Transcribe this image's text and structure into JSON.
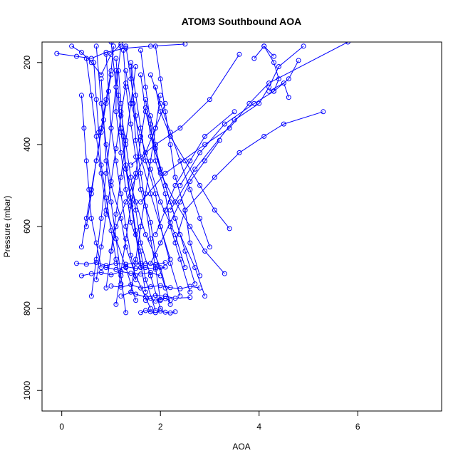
{
  "chart_data": {
    "type": "scatter",
    "title": "ATOM3 Southbound AOA",
    "xlabel": "AOA",
    "ylabel": "Pressure (mbar)",
    "xlim": [
      -0.4,
      7.7
    ],
    "ylim": [
      1050,
      150
    ],
    "x_ticks": [
      0,
      2,
      4,
      6
    ],
    "x_tick_labels": [
      "0",
      "2",
      "4",
      "6"
    ],
    "y_ticks": [
      200,
      400,
      600,
      800,
      1000
    ],
    "y_tick_labels": [
      "200",
      "400",
      "600",
      "800",
      "1000"
    ],
    "series_color": "#0000ff",
    "grid": false,
    "legend": "none",
    "series": [
      {
        "x": [
          1.6,
          1.7,
          1.8,
          1.9,
          2.0,
          2.1,
          2.2,
          2.3
        ],
        "y": [
          810,
          805,
          808,
          810,
          806,
          809,
          811,
          808
        ]
      },
      {
        "x": [
          1.2,
          1.4,
          1.5,
          1.7,
          1.9,
          2.1,
          2.3,
          2.6
        ],
        "y": [
          770,
          760,
          765,
          772,
          768,
          770,
          775,
          773
        ]
      },
      {
        "x": [
          0.4,
          0.6,
          0.8,
          1.0,
          1.2,
          1.4,
          1.6,
          1.8,
          2.0
        ],
        "y": [
          720,
          715,
          712,
          718,
          710,
          714,
          716,
          712,
          720
        ]
      },
      {
        "x": [
          0.3,
          0.5,
          0.7,
          0.9,
          1.1,
          1.3,
          1.5,
          1.7,
          1.9,
          2.1
        ],
        "y": [
          690,
          692,
          688,
          695,
          690,
          692,
          689,
          691,
          693,
          688
        ]
      },
      {
        "x": [
          1.0,
          1.2,
          1.4,
          1.6,
          1.8,
          2.0,
          2.2,
          2.4,
          2.6,
          2.8
        ],
        "y": [
          745,
          748,
          742,
          750,
          747,
          744,
          749,
          752,
          746,
          750
        ]
      },
      {
        "x": [
          1.8,
          1.5,
          1.3,
          1.2,
          1.0,
          0.9,
          0.8,
          0.7
        ],
        "y": [
          800,
          720,
          650,
          580,
          500,
          400,
          300,
          160
        ]
      },
      {
        "x": [
          2.2,
          2.0,
          1.7,
          1.5,
          1.3,
          1.2,
          1.1,
          1.0
        ],
        "y": [
          790,
          700,
          620,
          540,
          460,
          360,
          260,
          150
        ]
      },
      {
        "x": [
          1.5,
          1.3,
          1.1,
          0.9,
          0.8,
          0.7,
          0.6,
          0.5
        ],
        "y": [
          780,
          700,
          630,
          560,
          470,
          380,
          280,
          190
        ]
      },
      {
        "x": [
          2.4,
          2.2,
          2.0,
          1.8,
          1.6,
          1.5,
          1.4,
          1.3
        ],
        "y": [
          770,
          690,
          600,
          520,
          430,
          330,
          240,
          160
        ]
      },
      {
        "x": [
          1.9,
          1.7,
          1.6,
          1.4,
          1.3,
          1.2,
          1.1,
          1.1
        ],
        "y": [
          805,
          730,
          660,
          590,
          510,
          420,
          320,
          220
        ]
      },
      {
        "x": [
          2.6,
          2.4,
          2.2,
          2.1,
          1.9,
          1.8,
          1.7,
          1.6
        ],
        "y": [
          760,
          680,
          600,
          520,
          440,
          350,
          260,
          170
        ]
      },
      {
        "x": [
          1.2,
          1.1,
          1.0,
          0.9,
          0.8,
          0.75,
          0.7,
          0.65
        ],
        "y": [
          740,
          680,
          610,
          530,
          450,
          370,
          290,
          200
        ]
      },
      {
        "x": [
          2.8,
          2.6,
          2.5,
          2.3,
          2.2,
          2.1,
          2.0,
          1.9
        ],
        "y": [
          720,
          640,
          560,
          480,
          400,
          320,
          240,
          160
        ]
      },
      {
        "x": [
          1.7,
          1.6,
          1.5,
          1.4,
          1.3,
          1.2,
          1.15,
          1.1
        ],
        "y": [
          760,
          690,
          610,
          530,
          450,
          370,
          280,
          190
        ]
      },
      {
        "x": [
          0.8,
          0.7,
          0.6,
          0.55,
          0.5,
          0.45,
          0.4
        ],
        "y": [
          700,
          640,
          580,
          510,
          440,
          360,
          280
        ]
      },
      {
        "x": [
          2.0,
          1.9,
          1.8,
          1.7,
          1.6,
          1.5,
          1.45,
          1.4
        ],
        "y": [
          780,
          700,
          630,
          550,
          470,
          390,
          300,
          210
        ]
      },
      {
        "x": [
          3.3,
          2.9,
          2.6,
          2.3,
          2.0,
          1.9,
          1.8
        ],
        "y": [
          715,
          660,
          600,
          540,
          470,
          400,
          330
        ]
      },
      {
        "x": [
          2.3,
          2.5,
          3.1,
          3.6,
          4.1,
          4.5,
          5.3
        ],
        "y": [
          640,
          560,
          480,
          420,
          380,
          350,
          320
        ]
      },
      {
        "x": [
          2.4,
          2.8,
          3.3,
          3.9,
          4.3,
          4.6,
          4.8
        ],
        "y": [
          500,
          420,
          350,
          300,
          270,
          240,
          195
        ]
      },
      {
        "x": [
          2.2,
          2.7,
          3.5,
          4.0,
          4.2,
          4.4,
          4.9
        ],
        "y": [
          560,
          460,
          340,
          300,
          260,
          210,
          160
        ]
      },
      {
        "x": [
          1.6,
          2.1,
          2.9,
          3.4,
          3.8,
          4.2,
          5.8
        ],
        "y": [
          540,
          470,
          400,
          360,
          300,
          250,
          150
        ]
      },
      {
        "x": [
          3.4,
          3.1,
          2.8,
          2.5,
          2.2,
          2.0,
          1.9
        ],
        "y": [
          605,
          560,
          500,
          440,
          380,
          320,
          260
        ]
      },
      {
        "x": [
          1.4,
          1.9,
          2.4,
          3.0,
          3.6
        ],
        "y": [
          450,
          400,
          360,
          290,
          180
        ]
      },
      {
        "x": [
          -0.1,
          0.3,
          0.6,
          0.9,
          1.3,
          1.8,
          2.5
        ],
        "y": [
          178,
          185,
          190,
          175,
          165,
          160,
          155
        ]
      },
      {
        "x": [
          0.2,
          0.4,
          0.6,
          0.8,
          1.0,
          1.2
        ],
        "y": [
          160,
          175,
          200,
          230,
          180,
          155
        ]
      },
      {
        "x": [
          1.5,
          1.4,
          1.3,
          1.2,
          1.1,
          1.0,
          0.95,
          0.9
        ],
        "y": [
          730,
          670,
          600,
          520,
          440,
          360,
          270,
          180
        ]
      },
      {
        "x": [
          2.1,
          1.9,
          1.8,
          1.6,
          1.5,
          1.4,
          1.3,
          1.25
        ],
        "y": [
          750,
          670,
          590,
          510,
          430,
          350,
          260,
          170
        ]
      },
      {
        "x": [
          0.6,
          0.7,
          0.8,
          0.9,
          1.0,
          1.1,
          1.2
        ],
        "y": [
          770,
          680,
          580,
          470,
          360,
          260,
          160
        ]
      },
      {
        "x": [
          2.7,
          2.5,
          2.3,
          2.1,
          1.9,
          1.7,
          1.6
        ],
        "y": [
          740,
          660,
          580,
          500,
          410,
          320,
          230
        ]
      },
      {
        "x": [
          1.3,
          1.2,
          1.1,
          1.0,
          0.9,
          0.85,
          0.8
        ],
        "y": [
          810,
          720,
          630,
          540,
          440,
          340,
          240
        ]
      },
      {
        "x": [
          1.8,
          2.0,
          2.2,
          2.4,
          2.6,
          2.9,
          3.2
        ],
        "y": [
          690,
          640,
          590,
          540,
          490,
          440,
          390
        ]
      },
      {
        "x": [
          0.5,
          0.6,
          0.7,
          0.8,
          0.9,
          1.0,
          1.05
        ],
        "y": [
          600,
          520,
          440,
          360,
          290,
          220,
          160
        ]
      },
      {
        "x": [
          2.5,
          2.3,
          2.0,
          1.8,
          1.6,
          1.4,
          1.3
        ],
        "y": [
          700,
          620,
          540,
          460,
          380,
          300,
          220
        ]
      },
      {
        "x": [
          1.0,
          1.1,
          1.3,
          1.5,
          1.7,
          1.9,
          2.1
        ],
        "y": [
          660,
          600,
          540,
          480,
          420,
          360,
          300
        ]
      },
      {
        "x": [
          0.9,
          1.0,
          1.1,
          1.2,
          1.3,
          1.4,
          1.5
        ],
        "y": [
          750,
          660,
          570,
          480,
          390,
          300,
          210
        ]
      },
      {
        "x": [
          2.9,
          2.7,
          2.4,
          2.2,
          2.0,
          1.8,
          1.7
        ],
        "y": [
          770,
          700,
          620,
          540,
          460,
          380,
          290
        ]
      },
      {
        "x": [
          1.6,
          1.5,
          1.4,
          1.3,
          1.25,
          1.2,
          1.15
        ],
        "y": [
          700,
          620,
          540,
          460,
          380,
          300,
          220
        ]
      },
      {
        "x": [
          0.7,
          0.8,
          0.9,
          1.0,
          1.1,
          1.2,
          1.3
        ],
        "y": [
          730,
          650,
          570,
          490,
          410,
          330,
          250
        ]
      },
      {
        "x": [
          2.2,
          2.0,
          1.9,
          1.7,
          1.6,
          1.5,
          1.4
        ],
        "y": [
          680,
          600,
          520,
          440,
          360,
          280,
          200
        ]
      },
      {
        "x": [
          1.1,
          1.2,
          1.3,
          1.4,
          1.5,
          1.6,
          1.7
        ],
        "y": [
          790,
          710,
          630,
          550,
          470,
          390,
          310
        ]
      },
      {
        "x": [
          3.0,
          2.8,
          2.6,
          2.4,
          2.2,
          2.0,
          1.8
        ],
        "y": [
          650,
          580,
          510,
          440,
          370,
          300,
          230
        ]
      },
      {
        "x": [
          1.4,
          1.5,
          1.6,
          1.7,
          1.8,
          1.9,
          2.0
        ],
        "y": [
          760,
          680,
          600,
          520,
          440,
          360,
          280
        ]
      },
      {
        "x": [
          0.4,
          0.5,
          0.6,
          0.7,
          0.8,
          0.9,
          1.0
        ],
        "y": [
          650,
          580,
          510,
          440,
          370,
          300,
          230
        ]
      },
      {
        "x": [
          2.0,
          1.8,
          1.6,
          1.5,
          1.4,
          1.3,
          1.2
        ],
        "y": [
          800,
          720,
          640,
          560,
          480,
          400,
          320
        ]
      },
      {
        "x": [
          1.9,
          2.1,
          2.3,
          2.6,
          2.9,
          3.5
        ],
        "y": [
          620,
          560,
          500,
          440,
          380,
          320
        ]
      },
      {
        "x": [
          4.1,
          4.3,
          4.4,
          4.3
        ],
        "y": [
          160,
          200,
          240,
          270
        ]
      },
      {
        "x": [
          4.2,
          4.5,
          4.6
        ],
        "y": [
          270,
          250,
          285
        ]
      },
      {
        "x": [
          3.9,
          4.1,
          4.3
        ],
        "y": [
          190,
          160,
          185
        ]
      },
      {
        "x": [
          1.7,
          1.8,
          1.9,
          2.0,
          2.1,
          2.2
        ],
        "y": [
          780,
          775,
          782,
          778,
          776,
          780
        ]
      },
      {
        "x": [
          0.9,
          1.1,
          1.3,
          1.5,
          1.7,
          1.9,
          2.1
        ],
        "y": [
          700,
          705,
          698,
          702,
          700,
          704,
          699
        ]
      }
    ]
  }
}
